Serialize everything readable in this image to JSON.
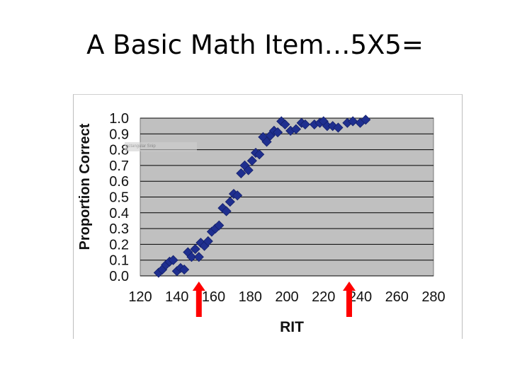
{
  "slide": {
    "title": "A Basic Math Item…5X5=",
    "snip_text": "ectangular Snip"
  },
  "chart_data": {
    "type": "scatter",
    "xlabel": "RIT",
    "ylabel": "Proportion Correct",
    "xlim": [
      120,
      280
    ],
    "ylim": [
      0.0,
      1.0
    ],
    "x_ticks": [
      "120",
      "140",
      "160",
      "180",
      "200",
      "220",
      "240",
      "260",
      "280"
    ],
    "y_ticks": [
      "0.0",
      "0.1",
      "0.2",
      "0.3",
      "0.4",
      "0.5",
      "0.6",
      "0.7",
      "0.8",
      "0.9",
      "1.0"
    ],
    "grid": "horizontal",
    "plot_background": "#c0c0c0",
    "marker_color": "#1f2f8f",
    "arrow_color": "#ff0000",
    "arrows_at_x": [
      152,
      234
    ],
    "points": [
      [
        130,
        0.02
      ],
      [
        132,
        0.04
      ],
      [
        134,
        0.07
      ],
      [
        136,
        0.09
      ],
      [
        138,
        0.1
      ],
      [
        140,
        0.03
      ],
      [
        142,
        0.05
      ],
      [
        144,
        0.04
      ],
      [
        146,
        0.15
      ],
      [
        148,
        0.12
      ],
      [
        150,
        0.17
      ],
      [
        152,
        0.12
      ],
      [
        153,
        0.21
      ],
      [
        155,
        0.19
      ],
      [
        157,
        0.22
      ],
      [
        159,
        0.28
      ],
      [
        161,
        0.3
      ],
      [
        163,
        0.32
      ],
      [
        165,
        0.43
      ],
      [
        167,
        0.41
      ],
      [
        169,
        0.47
      ],
      [
        171,
        0.52
      ],
      [
        173,
        0.51
      ],
      [
        175,
        0.65
      ],
      [
        177,
        0.7
      ],
      [
        179,
        0.67
      ],
      [
        181,
        0.73
      ],
      [
        183,
        0.78
      ],
      [
        185,
        0.77
      ],
      [
        187,
        0.88
      ],
      [
        189,
        0.85
      ],
      [
        191,
        0.89
      ],
      [
        193,
        0.92
      ],
      [
        195,
        0.91
      ],
      [
        197,
        0.98
      ],
      [
        199,
        0.96
      ],
      [
        202,
        0.92
      ],
      [
        205,
        0.93
      ],
      [
        208,
        0.97
      ],
      [
        210,
        0.96
      ],
      [
        215,
        0.96
      ],
      [
        218,
        0.97
      ],
      [
        220,
        0.98
      ],
      [
        222,
        0.95
      ],
      [
        225,
        0.95
      ],
      [
        228,
        0.94
      ],
      [
        233,
        0.97
      ],
      [
        236,
        0.98
      ],
      [
        240,
        0.97
      ],
      [
        243,
        0.99
      ]
    ]
  }
}
